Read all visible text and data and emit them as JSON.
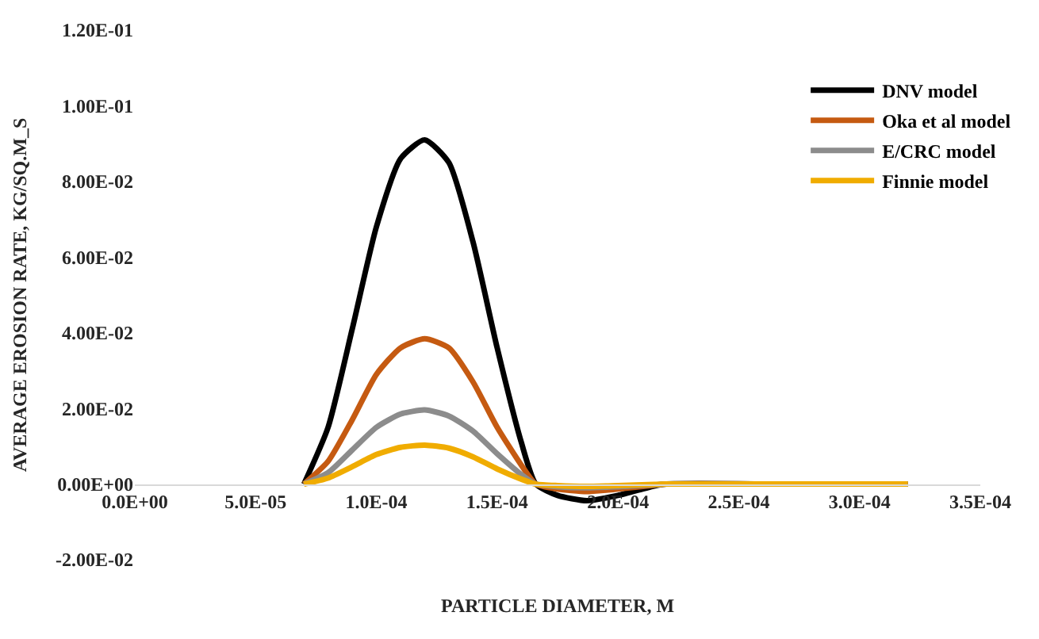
{
  "chart_data": {
    "type": "line",
    "xlabel": "PARTICLE DIAMETER, M",
    "ylabel": "AVERAGE EROSION RATE, KG/SQ.M_S",
    "x": [
      7e-05,
      8e-05,
      9e-05,
      0.0001,
      0.00011,
      0.00012,
      0.00013,
      0.00014,
      0.00015,
      0.00016,
      0.000166,
      0.000175,
      0.000187,
      0.0002,
      0.000215,
      0.00022,
      0.00027,
      0.00032
    ],
    "series": [
      {
        "name": "DNV model",
        "color": "#000000",
        "values": [
          0,
          0.015,
          0.041,
          0.068,
          0.086,
          0.091,
          0.085,
          0.064,
          0.036,
          0.011,
          0,
          -0.003,
          -0.0044,
          -0.003,
          -0.0005,
          0,
          0,
          0
        ]
      },
      {
        "name": "Oka et al model",
        "color": "#c55a11",
        "values": [
          0,
          0.006,
          0.017,
          0.029,
          0.036,
          0.0384,
          0.036,
          0.027,
          0.015,
          0.005,
          0,
          -0.0013,
          -0.002,
          -0.0013,
          -0.0003,
          0,
          0,
          0
        ]
      },
      {
        "name": "E/CRC model",
        "color": "#8c8c8c",
        "values": [
          0,
          0.003,
          0.009,
          0.015,
          0.0185,
          0.0196,
          0.018,
          0.014,
          0.008,
          0.0025,
          0,
          -0.0007,
          -0.001,
          -0.0007,
          -0.0002,
          0,
          0,
          0
        ]
      },
      {
        "name": "Finnie model",
        "color": "#f0ac00",
        "values": [
          0,
          0.0016,
          0.0046,
          0.0078,
          0.0097,
          0.0103,
          0.0095,
          0.0072,
          0.004,
          0.0013,
          0,
          -0.0004,
          -0.0006,
          -0.0004,
          -0.0001,
          0,
          0,
          0
        ]
      }
    ],
    "xlim": [
      0,
      0.00035
    ],
    "xticks": [
      {
        "value": 0,
        "label": "0.0E+00"
      },
      {
        "value": 5e-05,
        "label": "5.0E-05"
      },
      {
        "value": 0.0001,
        "label": "1.0E-04"
      },
      {
        "value": 0.00015,
        "label": "1.5E-04"
      },
      {
        "value": 0.0002,
        "label": "2.0E-04"
      },
      {
        "value": 0.00025,
        "label": "2.5E-04"
      },
      {
        "value": 0.0003,
        "label": "3.0E-04"
      },
      {
        "value": 0.00035,
        "label": "3.5E-04"
      }
    ],
    "ylim": [
      -0.02,
      0.12
    ],
    "yticks": [
      {
        "value": -0.02,
        "label": "-2.00E-02"
      },
      {
        "value": 0,
        "label": "0.00E+00"
      },
      {
        "value": 0.02,
        "label": "2.00E-02"
      },
      {
        "value": 0.04,
        "label": "4.00E-02"
      },
      {
        "value": 0.06,
        "label": "6.00E-02"
      },
      {
        "value": 0.08,
        "label": "8.00E-02"
      },
      {
        "value": 0.1,
        "label": "1.00E-01"
      },
      {
        "value": 0.12,
        "label": "1.20E-01"
      }
    ],
    "legend": "right",
    "marker": "none",
    "line_style": "solid"
  }
}
